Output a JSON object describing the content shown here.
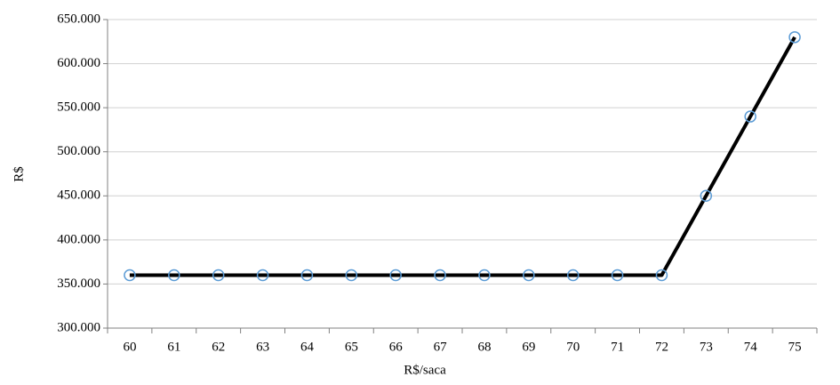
{
  "chart_data": {
    "type": "line",
    "x_label": "R$/saca",
    "y_label": "R$",
    "categories": [
      "60",
      "61",
      "62",
      "63",
      "64",
      "65",
      "66",
      "67",
      "68",
      "69",
      "70",
      "71",
      "72",
      "73",
      "74",
      "75"
    ],
    "values": [
      360000,
      360000,
      360000,
      360000,
      360000,
      360000,
      360000,
      360000,
      360000,
      360000,
      360000,
      360000,
      360000,
      450000,
      540000,
      630000
    ],
    "color": "#000000",
    "marker_color": "#5b9bd5",
    "ylim": [
      300000,
      650000
    ],
    "yticks": [
      {
        "value": 300000,
        "label": "300.000"
      },
      {
        "value": 350000,
        "label": "350.000"
      },
      {
        "value": 400000,
        "label": "400.000"
      },
      {
        "value": 450000,
        "label": "450.000"
      },
      {
        "value": 500000,
        "label": "500.000"
      },
      {
        "value": 550000,
        "label": "550.000"
      },
      {
        "value": 600000,
        "label": "600.000"
      },
      {
        "value": 650000,
        "label": "650.000"
      }
    ],
    "grid": true
  }
}
